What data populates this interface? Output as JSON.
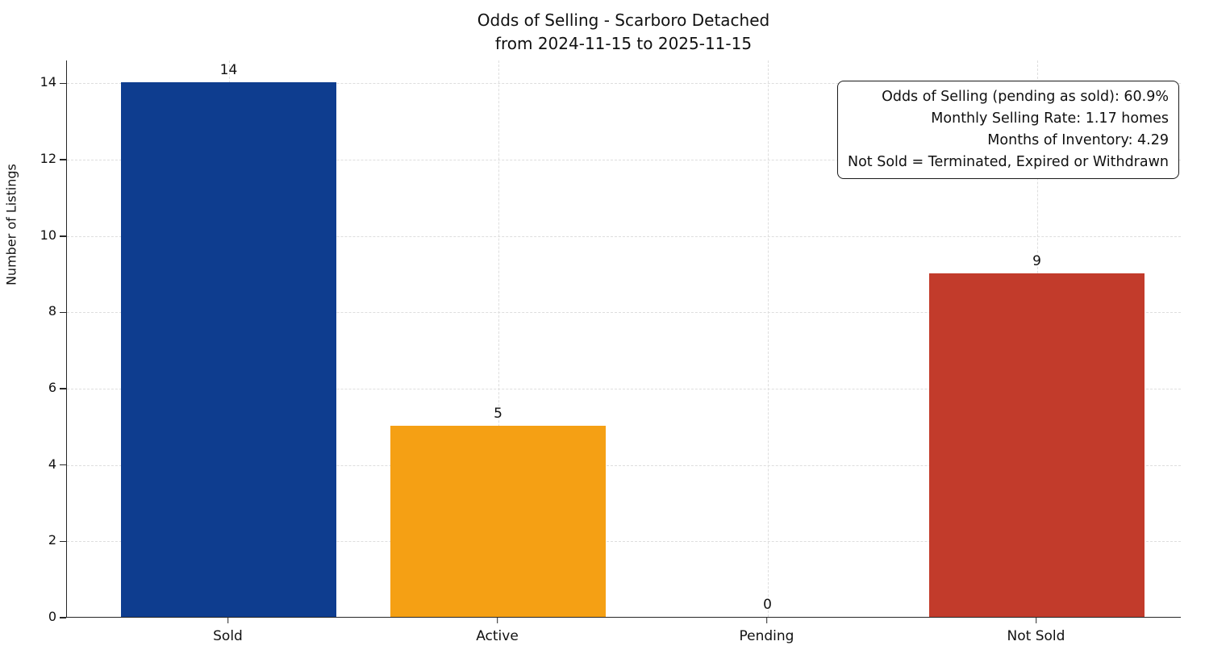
{
  "chart_data": {
    "type": "bar",
    "title": "Odds of Selling - Scarboro Detached",
    "subtitle": "from 2024-11-15 to 2025-11-15",
    "categories": [
      "Sold",
      "Active",
      "Pending",
      "Not Sold"
    ],
    "values": [
      14,
      5,
      0,
      9
    ],
    "colors": [
      "#0e3d8f",
      "#f5a014",
      null,
      "#c23b2b"
    ],
    "xlabel": "",
    "ylabel": "Number of Listings",
    "ylim": [
      0,
      14.6
    ],
    "yticks": [
      0,
      2,
      4,
      6,
      8,
      10,
      12,
      14
    ],
    "grid": true,
    "legend": "none",
    "annotation_lines": [
      "Odds of Selling (pending as sold): 60.9%",
      "Monthly Selling Rate: 1.17 homes",
      "Months of Inventory: 4.29",
      "Not Sold = Terminated, Expired or Withdrawn"
    ]
  }
}
